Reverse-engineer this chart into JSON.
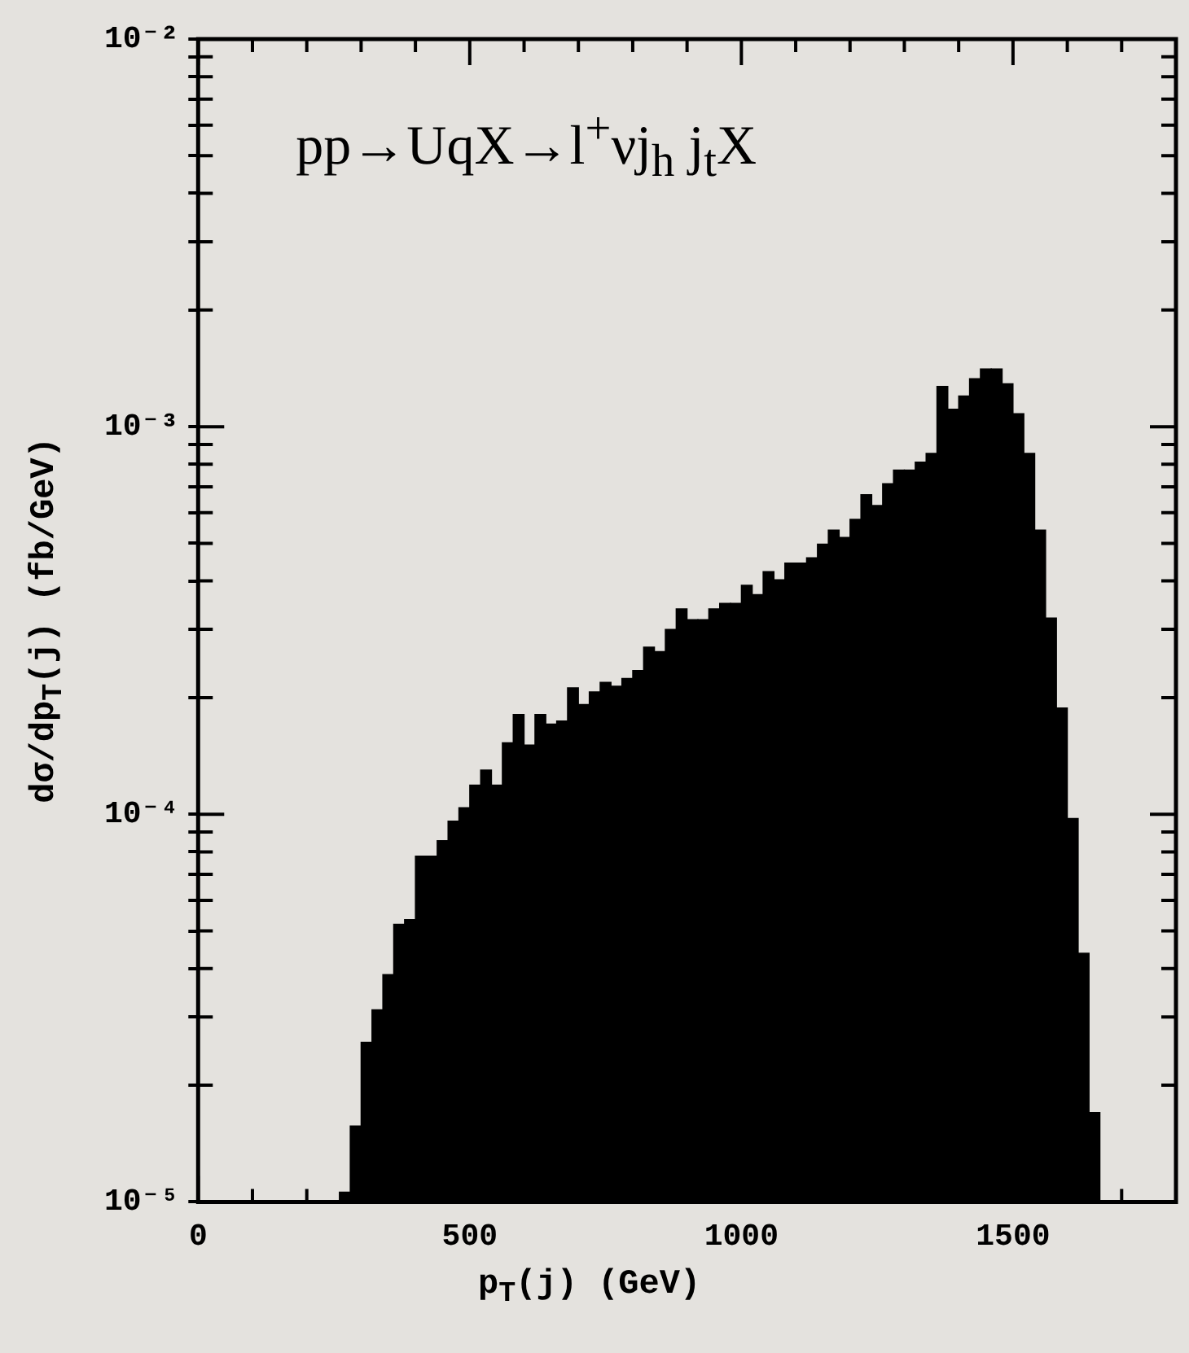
{
  "chart_data": {
    "type": "histogram",
    "annotations": [
      "pp→UqX→l$^{+}$νj$_{h}$ j$_{t}$X"
    ],
    "xlabel": "p$_{T}$(j)  (GeV)",
    "ylabel": "dσ/dp$_{T}$(j)   (fb/GeV)",
    "color": "#000000",
    "log": "y",
    "xlim": [
      0,
      1800
    ],
    "ylim": [
      1e-05,
      0.01
    ],
    "xticks": [
      0,
      {
        "value": 100,
        "label": null
      },
      {
        "value": 200,
        "label": null
      },
      {
        "value": 300,
        "label": null
      },
      {
        "value": 400,
        "label": null
      },
      500,
      {
        "value": 600,
        "label": null
      },
      {
        "value": 700,
        "label": null
      },
      {
        "value": 800,
        "label": null
      },
      {
        "value": 900,
        "label": null
      },
      1000,
      {
        "value": 1100,
        "label": null
      },
      {
        "value": 1200,
        "label": null
      },
      {
        "value": 1300,
        "label": null
      },
      {
        "value": 1400,
        "label": null
      },
      1500,
      {
        "value": 1600,
        "label": null
      },
      {
        "value": 1700,
        "label": null
      }
    ],
    "yticks": [
      {
        "value": 1e-05,
        "label": "10⁻⁵"
      },
      {
        "value": 2e-05,
        "label": null
      },
      {
        "value": 3e-05,
        "label": null
      },
      {
        "value": 4e-05,
        "label": null
      },
      {
        "value": 5e-05,
        "label": null
      },
      {
        "value": 6e-05,
        "label": null
      },
      {
        "value": 7e-05,
        "label": null
      },
      {
        "value": 8e-05,
        "label": null
      },
      {
        "value": 9e-05,
        "label": null
      },
      {
        "value": 0.0001,
        "label": "10⁻⁴"
      },
      {
        "value": 0.0002,
        "label": null
      },
      {
        "value": 0.0003,
        "label": null
      },
      {
        "value": 0.0004,
        "label": null
      },
      {
        "value": 0.0005,
        "label": null
      },
      {
        "value": 0.0006,
        "label": null
      },
      {
        "value": 0.0007,
        "label": null
      },
      {
        "value": 0.0008,
        "label": null
      },
      {
        "value": 0.0009,
        "label": null
      },
      {
        "value": 0.001,
        "label": "10⁻³"
      },
      {
        "value": 0.002,
        "label": null
      },
      {
        "value": 0.003,
        "label": null
      },
      {
        "value": 0.004,
        "label": null
      },
      {
        "value": 0.005,
        "label": null
      },
      {
        "value": 0.006,
        "label": null
      },
      {
        "value": 0.007,
        "label": null
      },
      {
        "value": 0.008,
        "label": null
      },
      {
        "value": 0.009,
        "label": null
      },
      {
        "value": 0.01,
        "label": "10⁻²"
      }
    ],
    "bins": [
      260,
      280,
      300,
      320,
      340,
      360,
      380,
      400,
      420,
      440,
      460,
      480,
      500,
      520,
      540,
      560,
      580,
      600,
      620,
      640,
      660,
      680,
      700,
      720,
      740,
      760,
      780,
      800,
      820,
      840,
      860,
      880,
      900,
      920,
      940,
      960,
      980,
      1000,
      1020,
      1040,
      1060,
      1080,
      1100,
      1120,
      1140,
      1160,
      1180,
      1200,
      1220,
      1240,
      1260,
      1280,
      1300,
      1320,
      1340,
      1360,
      1380,
      1400,
      1420,
      1440,
      1460,
      1480,
      1500,
      1520,
      1540,
      1560,
      1580,
      1600,
      1620,
      1640,
      1660
    ],
    "values": [
      1.06e-05,
      1.57e-05,
      2.58e-05,
      3.13e-05,
      3.86e-05,
      5.2e-05,
      5.35e-05,
      7.8e-05,
      7.8e-05,
      8.55e-05,
      9.6e-05,
      0.000104,
      0.000119,
      0.00013,
      0.000119,
      0.000153,
      0.000181,
      0.000151,
      0.000181,
      0.000171,
      0.000174,
      0.000212,
      0.000192,
      0.000207,
      0.000219,
      0.000214,
      0.000224,
      0.000235,
      0.00027,
      0.000263,
      0.0003,
      0.000339,
      0.000318,
      0.000318,
      0.000339,
      0.00035,
      0.00035,
      0.00039,
      0.000369,
      0.000423,
      0.000403,
      0.000445,
      0.000445,
      0.000459,
      0.000498,
      0.000541,
      0.000518,
      0.000577,
      0.000668,
      0.000626,
      0.000713,
      0.000773,
      0.000773,
      0.00081,
      0.000853,
      0.00127,
      0.00111,
      0.0012,
      0.00133,
      0.00141,
      0.00141,
      0.00129,
      0.00108,
      0.000853,
      0.000541,
      0.000321,
      0.000188,
      9.75e-05,
      4.38e-05,
      1.7e-05
    ]
  }
}
